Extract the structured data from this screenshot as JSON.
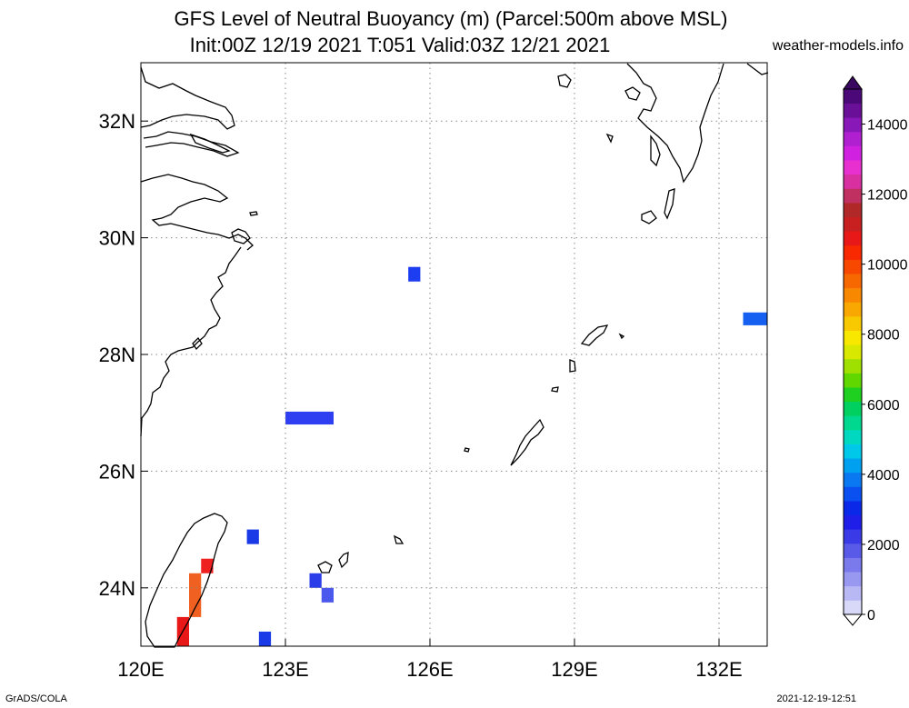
{
  "header": {
    "title_line1": "GFS Level of Neutral Buoyancy (m) (Parcel:500m above MSL)",
    "title_line2": "Init:00Z 12/19 2021 T:051 Valid:03Z 12/21 2021",
    "site": "weather-models.info"
  },
  "footer": {
    "software": "GrADS/COLA",
    "timestamp": "2021-12-19-12:51"
  },
  "map": {
    "lon_range": [
      120,
      133
    ],
    "lat_range": [
      23,
      33
    ],
    "lon_ticks": [
      {
        "value": 120,
        "label": "120E"
      },
      {
        "value": 123,
        "label": "123E"
      },
      {
        "value": 126,
        "label": "126E"
      },
      {
        "value": 129,
        "label": "129E"
      },
      {
        "value": 132,
        "label": "132E"
      }
    ],
    "lat_ticks": [
      {
        "value": 24,
        "label": "24N"
      },
      {
        "value": 26,
        "label": "26N"
      },
      {
        "value": 28,
        "label": "28N"
      },
      {
        "value": 30,
        "label": "30N"
      },
      {
        "value": 32,
        "label": "32N"
      }
    ],
    "cells": [
      {
        "lon0": 125.55,
        "lon1": 125.8,
        "lat0": 29.25,
        "lat1": 29.5,
        "color": "#1c3df0"
      },
      {
        "lon0": 132.5,
        "lon1": 133.0,
        "lat0": 28.5,
        "lat1": 28.72,
        "color": "#1560f0"
      },
      {
        "lon0": 123.0,
        "lon1": 124.0,
        "lat0": 26.8,
        "lat1": 27.02,
        "color": "#2d3ff0"
      },
      {
        "lon0": 122.2,
        "lon1": 122.45,
        "lat0": 24.75,
        "lat1": 25.0,
        "color": "#1a3ae8"
      },
      {
        "lon0": 123.5,
        "lon1": 123.75,
        "lat0": 24.0,
        "lat1": 24.25,
        "color": "#2a3de8"
      },
      {
        "lon0": 123.75,
        "lon1": 124.0,
        "lat0": 23.75,
        "lat1": 24.0,
        "color": "#4a58ee"
      },
      {
        "lon0": 122.45,
        "lon1": 122.7,
        "lat0": 23.0,
        "lat1": 23.25,
        "color": "#1a3ae8"
      },
      {
        "lon0": 121.25,
        "lon1": 121.5,
        "lat0": 24.25,
        "lat1": 24.5,
        "color": "#ee2020"
      },
      {
        "lon0": 121.0,
        "lon1": 121.25,
        "lat0": 23.5,
        "lat1": 24.25,
        "color": "#f06020"
      },
      {
        "lon0": 120.75,
        "lon1": 121.0,
        "lat0": 23.0,
        "lat1": 23.5,
        "color": "#e81818"
      }
    ]
  },
  "colorbar": {
    "min": 0,
    "max": 15000,
    "labels": [
      "0",
      "2000",
      "4000",
      "6000",
      "8000",
      "10000",
      "12000",
      "14000"
    ],
    "colors": [
      "#d8d8f8",
      "#b8b8f4",
      "#9898f0",
      "#7a7aec",
      "#5a5ae8",
      "#3a3ae6",
      "#1e1ee8",
      "#0a28e8",
      "#0a50f0",
      "#0a78f0",
      "#00a0f0",
      "#00c8e8",
      "#00d8c0",
      "#00d890",
      "#00d060",
      "#20d020",
      "#60d800",
      "#a0e000",
      "#d8e800",
      "#f8e800",
      "#f8c800",
      "#f8a800",
      "#f88800",
      "#f86800",
      "#f84800",
      "#f82800",
      "#e81818",
      "#c82020",
      "#b02828",
      "#c03060",
      "#d830a0",
      "#e830d0",
      "#d020e0",
      "#b020d0",
      "#8818b8",
      "#6a1098",
      "#4a0878"
    ]
  }
}
